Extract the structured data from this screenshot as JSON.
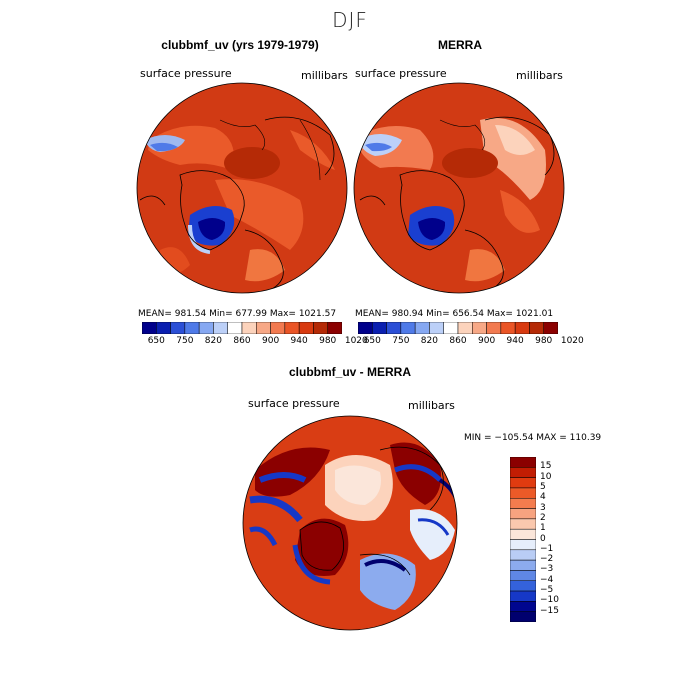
{
  "figure": {
    "season": "DJF"
  },
  "panels": [
    {
      "title": "clubbmf_uv (yrs 1979-1979)",
      "variable": "surface pressure",
      "units": "millibars",
      "stats": "MEAN= 981.54   Min= 677.99   Max= 1021.57"
    },
    {
      "title": "MERRA",
      "variable": "surface pressure",
      "units": "millibars",
      "stats": "MEAN= 980.94   Min= 656.54   Max= 1021.01"
    }
  ],
  "diff_panel": {
    "title": "clubbmf_uv - MERRA",
    "variable": "surface pressure",
    "units": "millibars",
    "stats": "MIN = −105.54  MAX = 110.39"
  },
  "colorbar_top": {
    "ticks": [
      "650",
      "750",
      "820",
      "860",
      "900",
      "940",
      "980",
      "1020"
    ],
    "colors": [
      "#00008b",
      "#0a1fb0",
      "#2b4fd6",
      "#4f7ae8",
      "#86a8f2",
      "#bcd0f8",
      "#ffffff",
      "#fcd3bc",
      "#f7a886",
      "#f27a50",
      "#ea5526",
      "#d83a10",
      "#b52a06",
      "#8b0000"
    ]
  },
  "colorbar_diff": {
    "ticks": [
      "15",
      "10",
      "5",
      "4",
      "3",
      "2",
      "1",
      "0",
      "−1",
      "−2",
      "−3",
      "−4",
      "−5",
      "−10",
      "−15"
    ],
    "colors": [
      "#8b0000",
      "#c21d03",
      "#e03b10",
      "#ec5a28",
      "#f47c4e",
      "#f7a380",
      "#fac8ae",
      "#fbe6da",
      "#e6eefb",
      "#b9cdf5",
      "#8cabee",
      "#5f87e5",
      "#3462db",
      "#1638c7",
      "#00068f",
      "#00006e"
    ]
  },
  "chart_data": {
    "type": "map",
    "projection": "north polar stereographic",
    "maps": [
      {
        "title": "clubbmf_uv (yrs 1979-1979)",
        "field": "surface pressure",
        "units": "millibars",
        "mean": 981.54,
        "min": 677.99,
        "max": 1021.57
      },
      {
        "title": "MERRA",
        "field": "surface pressure",
        "units": "millibars",
        "mean": 980.94,
        "min": 656.54,
        "max": 1021.01
      },
      {
        "title": "clubbmf_uv - MERRA",
        "field": "surface pressure",
        "units": "millibars",
        "min": -105.54,
        "max": 110.39
      }
    ],
    "contour_levels_top": [
      650,
      750,
      820,
      860,
      900,
      940,
      980,
      1020
    ],
    "contour_levels_diff": [
      15,
      10,
      5,
      4,
      3,
      2,
      1,
      0,
      -1,
      -2,
      -3,
      -4,
      -5,
      -10,
      -15
    ]
  }
}
